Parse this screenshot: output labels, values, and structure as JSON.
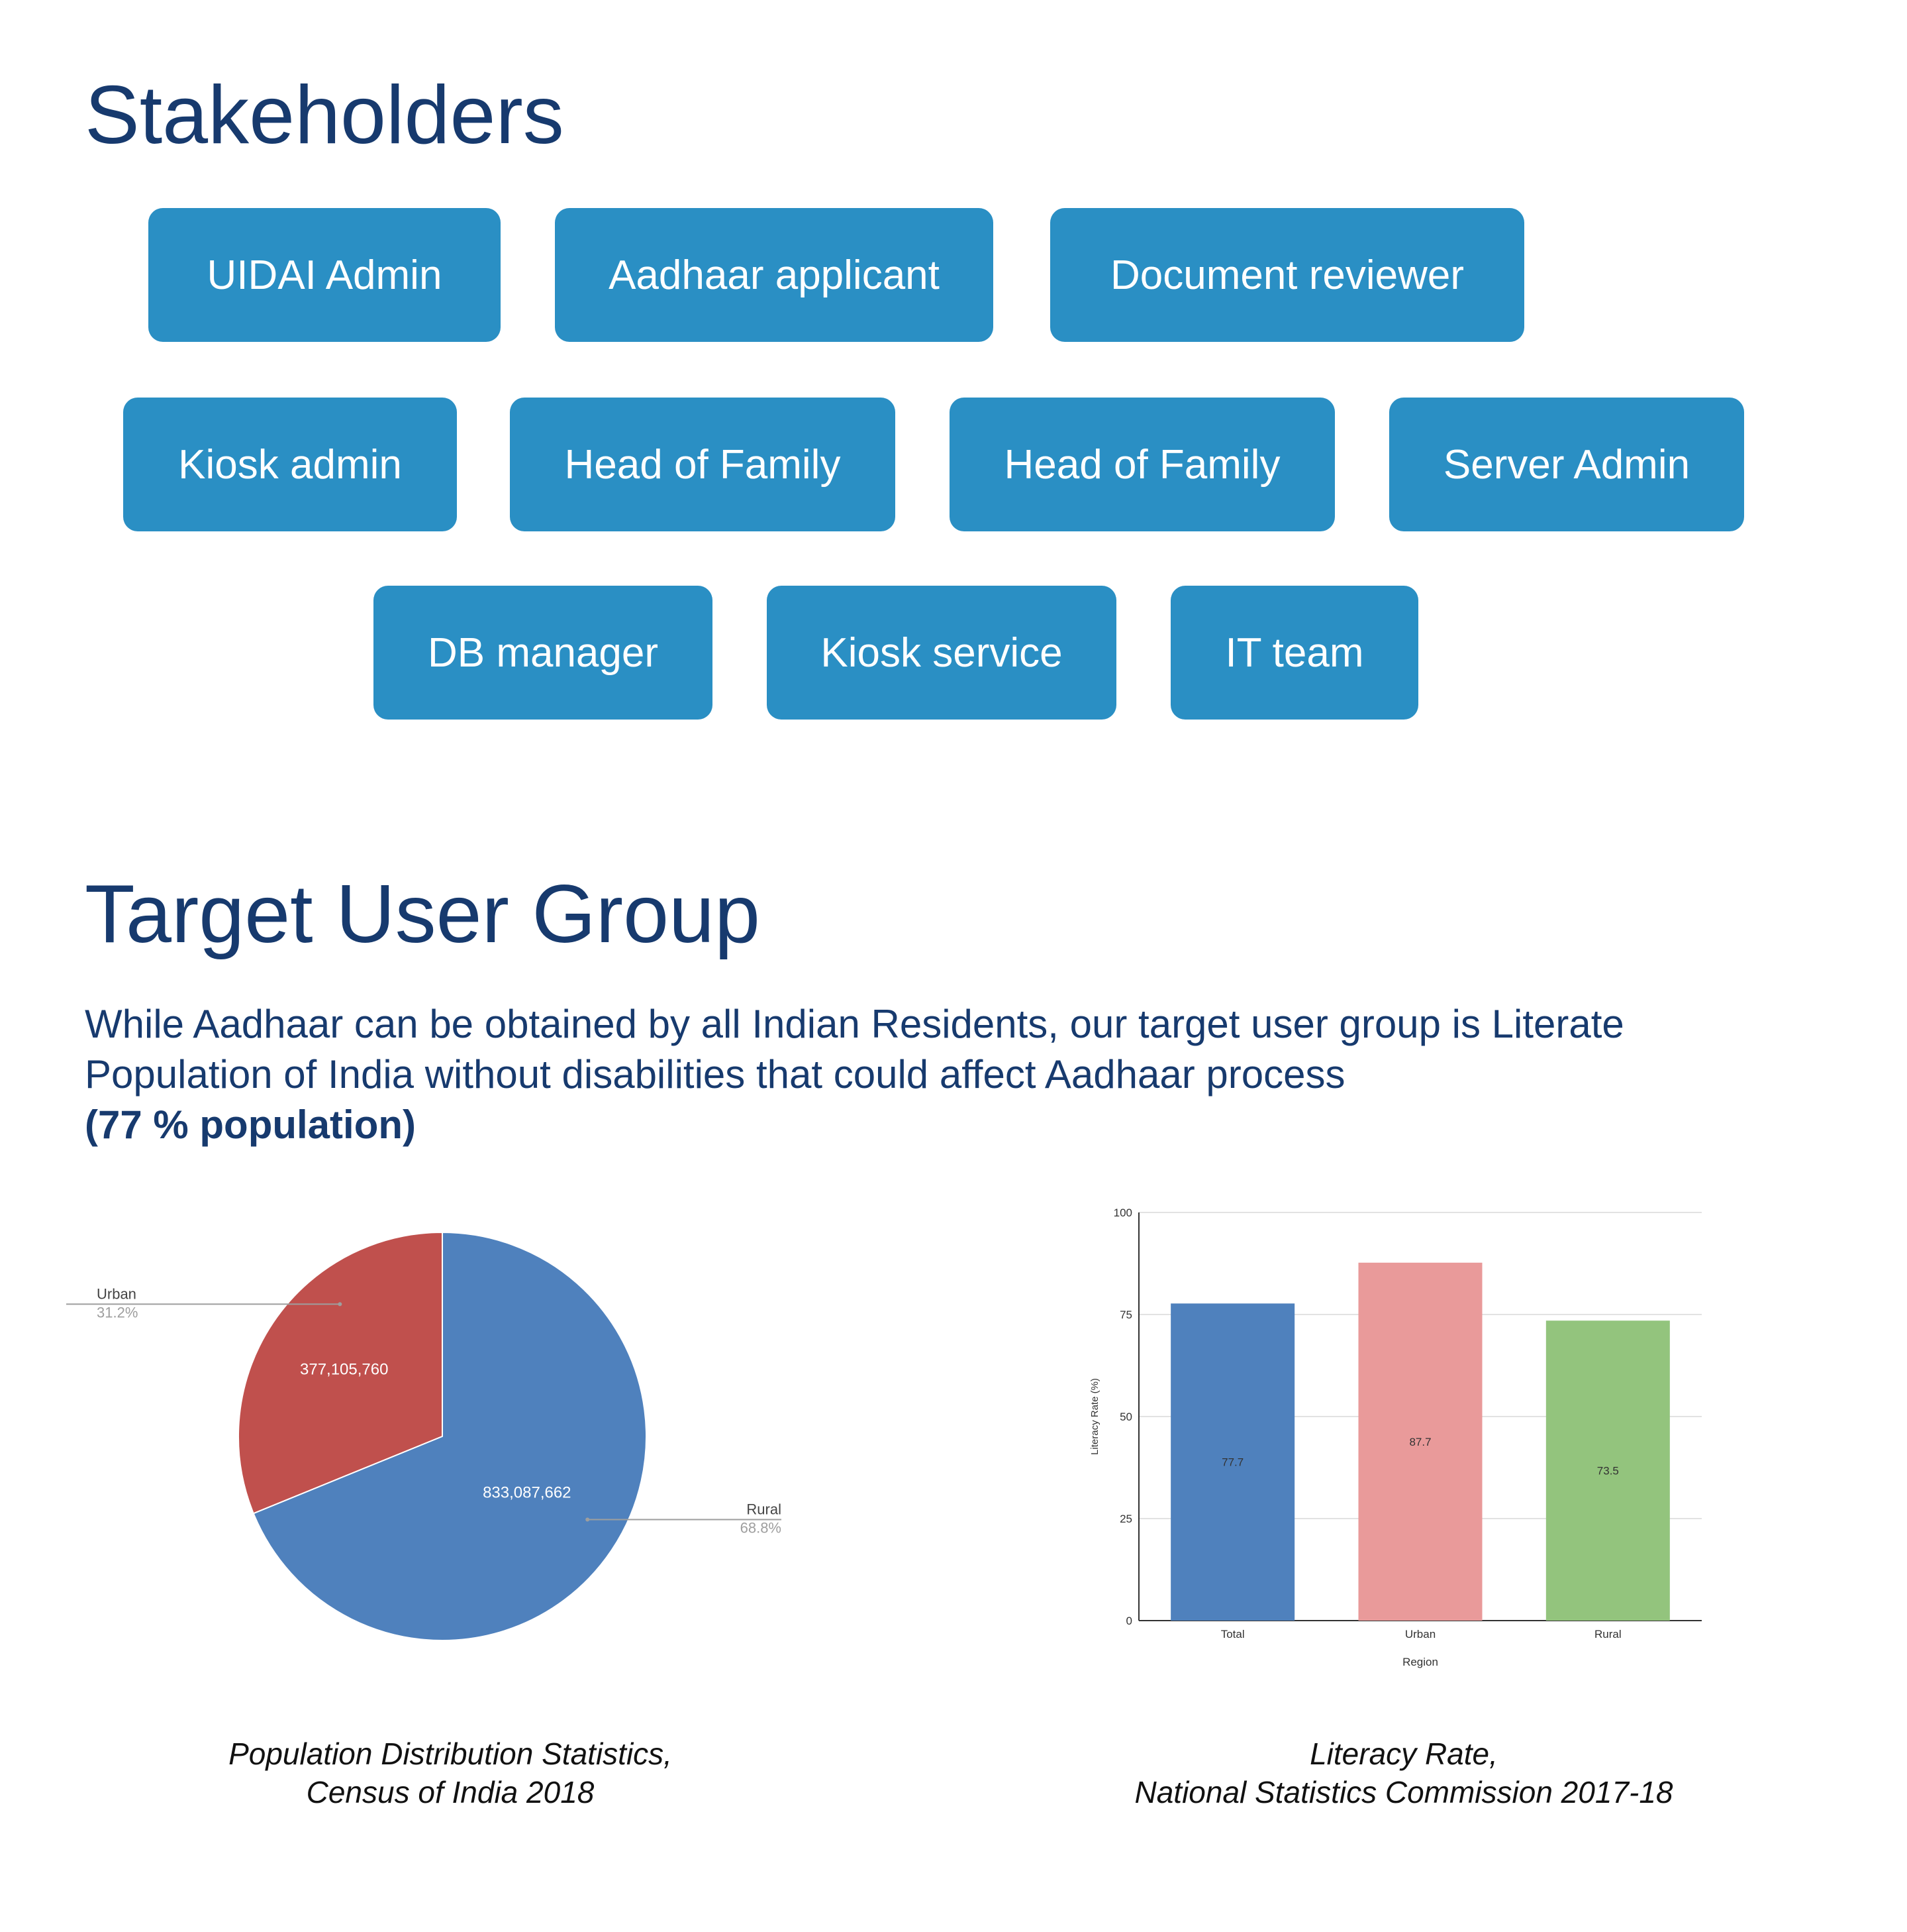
{
  "stakeholders": {
    "title": "Stakeholders",
    "chips": [
      "UIDAI Admin",
      "Aadhaar applicant",
      "Document reviewer",
      "Kiosk admin",
      "Head of Family",
      "Head of Family",
      "Server Admin",
      "DB manager",
      "Kiosk service",
      "IT team"
    ]
  },
  "target": {
    "title": "Target User Group",
    "line1": "While Aadhaar can be obtained by all Indian Residents, our target user group is Literate",
    "line2": "Population of India without disabilities that could affect Aadhaar process",
    "line3": "(77 % population)"
  },
  "captions": {
    "pie_line1": "Population Distribution Statistics,",
    "pie_line2": "Census of India 2018",
    "bar_line1": "Literacy Rate,",
    "bar_line2": "National Statistics Commission 2017-18"
  },
  "colors": {
    "heading": "#173a6e",
    "chip": "#2a8fc4",
    "urban_pie": "#c0504d",
    "rural_pie": "#4f81bd",
    "bar_total": "#4f81bd",
    "bar_urban": "#e99a9a",
    "bar_rural": "#93c47d"
  },
  "chart_data": [
    {
      "type": "pie",
      "slices": [
        {
          "label": "Urban",
          "value": 377105760,
          "value_label": "377,105,760",
          "percent_label": "31.2%"
        },
        {
          "label": "Rural",
          "value": 833087662,
          "value_label": "833,087,662",
          "percent_label": "68.8%"
        }
      ]
    },
    {
      "type": "bar",
      "categories": [
        "Total",
        "Urban",
        "Rural"
      ],
      "values": [
        77.7,
        87.7,
        73.5
      ],
      "value_labels": [
        "77.7",
        "87.7",
        "73.5"
      ],
      "xlabel": "Region",
      "ylabel": "Literacy Rate (%)",
      "ylim": [
        0,
        100
      ],
      "yticks": [
        0,
        25,
        50,
        75,
        100
      ],
      "grid": true
    }
  ]
}
